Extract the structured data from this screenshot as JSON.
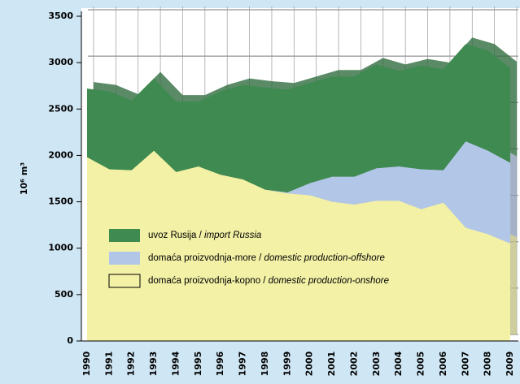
{
  "chart_data": {
    "type": "stacked_area",
    "ylabel": "10⁶ m³",
    "categories": [
      "1990",
      "1991",
      "1992",
      "1993",
      "1994",
      "1995",
      "1996",
      "1997",
      "1998",
      "1999",
      "2000",
      "2001",
      "2002",
      "2003",
      "2004",
      "2005",
      "2006",
      "2007",
      "2008",
      "2009"
    ],
    "series": [
      {
        "name": "domaća proizvodnja-kopno / domestic production-onshore",
        "color": "#f3f1a6",
        "values": [
          1980,
          1850,
          1840,
          2050,
          1820,
          1880,
          1790,
          1740,
          1630,
          1590,
          1570,
          1500,
          1470,
          1510,
          1510,
          1420,
          1490,
          1220,
          1150,
          1050
        ]
      },
      {
        "name": "domaća proizvodnja-more / domestic production-offshore",
        "color": "#b2c7e8",
        "values": [
          0,
          0,
          0,
          0,
          0,
          0,
          0,
          0,
          0,
          10,
          130,
          270,
          300,
          350,
          370,
          430,
          350,
          930,
          900,
          870
        ]
      },
      {
        "name": "uvoz Rusija / import Russia",
        "color": "#3e8a50",
        "values": [
          740,
          840,
          750,
          780,
          760,
          700,
          900,
          1020,
          1100,
          1110,
          1080,
          1080,
          1080,
          1120,
          1030,
          1120,
          1090,
          1050,
          1080,
          1020
        ]
      }
    ],
    "ylim": [
      0,
      3500
    ],
    "yticks": [
      0,
      500,
      1000,
      1500,
      2000,
      2500,
      3000,
      3500
    ],
    "grid": true
  }
}
